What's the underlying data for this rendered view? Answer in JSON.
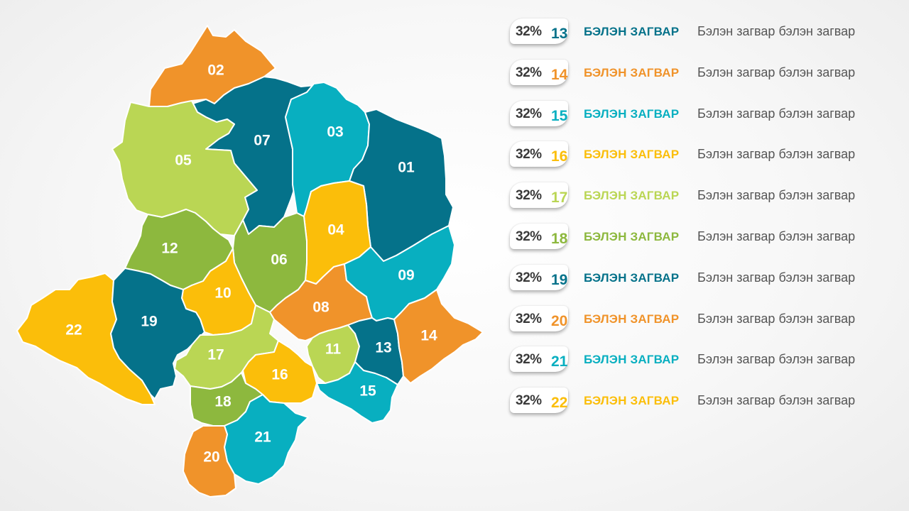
{
  "colors": {
    "dark_teal": "#05728a",
    "orange": "#f0932a",
    "cyan": "#08afc0",
    "yellow": "#fbbe0a",
    "light_green": "#bad654",
    "olive_green": "#8db83e"
  },
  "map": {
    "regions": [
      {
        "id": "01",
        "label": "01",
        "color": "#05728a"
      },
      {
        "id": "02",
        "label": "02",
        "color": "#f0932a"
      },
      {
        "id": "03",
        "label": "03",
        "color": "#08afc0"
      },
      {
        "id": "04",
        "label": "04",
        "color": "#fbbe0a"
      },
      {
        "id": "05",
        "label": "05",
        "color": "#bad654"
      },
      {
        "id": "06",
        "label": "06",
        "color": "#8db83e"
      },
      {
        "id": "07",
        "label": "07",
        "color": "#05728a"
      },
      {
        "id": "08",
        "label": "08",
        "color": "#f0932a"
      },
      {
        "id": "09",
        "label": "09",
        "color": "#08afc0"
      },
      {
        "id": "10",
        "label": "10",
        "color": "#fbbe0a"
      },
      {
        "id": "11",
        "label": "11",
        "color": "#bad654"
      },
      {
        "id": "12",
        "label": "12",
        "color": "#8db83e"
      },
      {
        "id": "13",
        "label": "13",
        "color": "#05728a"
      },
      {
        "id": "14",
        "label": "14",
        "color": "#f0932a"
      },
      {
        "id": "15",
        "label": "15",
        "color": "#08afc0"
      },
      {
        "id": "16",
        "label": "16",
        "color": "#fbbe0a"
      },
      {
        "id": "17",
        "label": "17",
        "color": "#bad654"
      },
      {
        "id": "18",
        "label": "18",
        "color": "#8db83e"
      },
      {
        "id": "19",
        "label": "19",
        "color": "#05728a"
      },
      {
        "id": "20",
        "label": "20",
        "color": "#f0932a"
      },
      {
        "id": "21",
        "label": "21",
        "color": "#08afc0"
      },
      {
        "id": "22",
        "label": "22",
        "color": "#fbbe0a"
      }
    ]
  },
  "legend": [
    {
      "percent": "32%",
      "number": "13",
      "title": "БЭЛЭН ЗАГВАР",
      "text": "Бэлэн загвар бэлэн загвар",
      "color": "#05728a"
    },
    {
      "percent": "32%",
      "number": "14",
      "title": "БЭЛЭН ЗАГВАР",
      "text": "Бэлэн загвар бэлэн загвар",
      "color": "#f0932a"
    },
    {
      "percent": "32%",
      "number": "15",
      "title": "БЭЛЭН ЗАГВАР",
      "text": "Бэлэн загвар бэлэн загвар",
      "color": "#08afc0"
    },
    {
      "percent": "32%",
      "number": "16",
      "title": "БЭЛЭН ЗАГВАР",
      "text": "Бэлэн загвар бэлэн загвар",
      "color": "#fbbe0a"
    },
    {
      "percent": "32%",
      "number": "17",
      "title": "БЭЛЭН ЗАГВАР",
      "text": "Бэлэн загвар бэлэн загвар",
      "color": "#bad654"
    },
    {
      "percent": "32%",
      "number": "18",
      "title": "БЭЛЭН ЗАГВАР",
      "text": "Бэлэн загвар бэлэн загвар",
      "color": "#8db83e"
    },
    {
      "percent": "32%",
      "number": "19",
      "title": "БЭЛЭН ЗАГВАР",
      "text": "Бэлэн загвар бэлэн загвар",
      "color": "#05728a"
    },
    {
      "percent": "32%",
      "number": "20",
      "title": "БЭЛЭН ЗАГВАР",
      "text": "Бэлэн загвар бэлэн загвар",
      "color": "#f0932a"
    },
    {
      "percent": "32%",
      "number": "21",
      "title": "БЭЛЭН ЗАГВАР",
      "text": "Бэлэн загвар бэлэн загвар",
      "color": "#08afc0"
    },
    {
      "percent": "32%",
      "number": "22",
      "title": "БЭЛЭН ЗАГВАР",
      "text": "Бэлэн загвар бэлэн загвар",
      "color": "#fbbe0a"
    }
  ]
}
